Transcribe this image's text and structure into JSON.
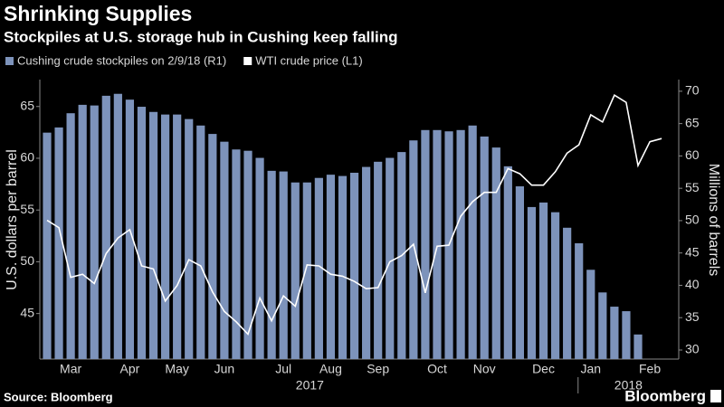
{
  "chart_data": {
    "type": "bar_line",
    "title": "Shrinking Supplies",
    "subtitle": "Stockpiles at U.S. storage hub in Cushing keep falling",
    "ylabel": "U.S. dollars per barrel",
    "y2label": "Millions of barrels",
    "source": "Source: Bloomberg",
    "brand": "Bloomberg",
    "year_labels": [
      "2017",
      "2018"
    ],
    "categories": [
      null,
      null,
      "Mar",
      null,
      null,
      null,
      null,
      "Apr",
      null,
      null,
      null,
      "May",
      null,
      null,
      null,
      "Jun",
      null,
      null,
      null,
      null,
      "Jul",
      null,
      null,
      null,
      "Aug",
      null,
      null,
      null,
      "Sep",
      null,
      null,
      null,
      null,
      "Oct",
      null,
      null,
      null,
      "Nov",
      null,
      null,
      null,
      null,
      "Dec",
      null,
      null,
      null,
      "Jan",
      null,
      null,
      null,
      null,
      "Feb",
      null
    ],
    "ylim": [
      40.6,
      67.6
    ],
    "yticks": [
      45,
      50,
      55,
      60,
      65
    ],
    "y2lim": [
      28.6,
      71.8
    ],
    "y2ticks": [
      30,
      35,
      40,
      45,
      50,
      55,
      60,
      65,
      70
    ],
    "series": [
      {
        "name": "Cushing crude stockpiles on 2/9/18 (R1)",
        "type": "bar",
        "axis": "y2",
        "color": "#7d93bb",
        "values": [
          63.6,
          64.4,
          66.6,
          67.9,
          67.8,
          69.3,
          69.6,
          68.7,
          67.6,
          66.8,
          66.4,
          66.4,
          65.7,
          64.7,
          63.4,
          62.2,
          61.0,
          60.8,
          59.7,
          57.7,
          57.6,
          55.9,
          55.9,
          56.6,
          57.1,
          56.9,
          57.4,
          58.3,
          59.1,
          59.7,
          60.6,
          62.4,
          64.0,
          64.0,
          63.8,
          64.0,
          64.7,
          63.0,
          61.3,
          58.4,
          55.3,
          52.1,
          52.8,
          51.3,
          48.9,
          46.5,
          42.4,
          38.9,
          36.7,
          36.0,
          32.4,
          null,
          null
        ]
      },
      {
        "name": "WTI crude price (L1)",
        "type": "line",
        "axis": "y",
        "color": "#ffffff",
        "values": [
          54.0,
          53.3,
          48.5,
          48.8,
          47.9,
          50.8,
          52.3,
          53.1,
          49.6,
          49.3,
          46.2,
          47.7,
          50.2,
          49.6,
          47.1,
          45.2,
          44.2,
          43.0,
          46.5,
          44.3,
          46.7,
          45.7,
          49.7,
          49.6,
          48.8,
          48.6,
          48.1,
          47.4,
          47.5,
          50.0,
          50.6,
          51.7,
          47.0,
          51.5,
          51.6,
          54.4,
          55.8,
          56.7,
          56.7,
          59.0,
          58.5,
          57.4,
          57.4,
          58.7,
          60.5,
          61.3,
          64.2,
          63.5,
          66.1,
          65.4,
          59.3,
          61.6,
          61.9
        ]
      }
    ]
  }
}
